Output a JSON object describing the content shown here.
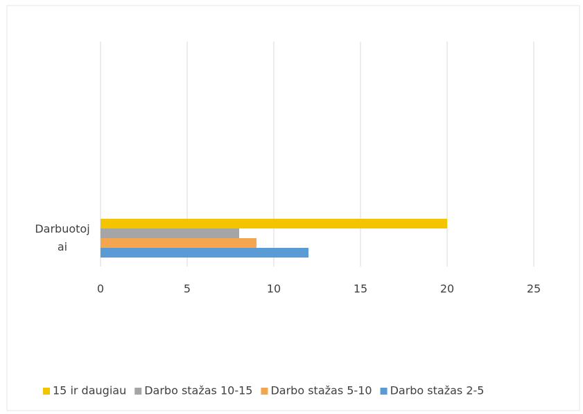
{
  "chart_data": {
    "type": "bar",
    "orientation": "horizontal",
    "categories": [
      "Darbuotojai"
    ],
    "series": [
      {
        "name": "15 ir daugiau",
        "color": "#f2c500",
        "values": [
          20
        ]
      },
      {
        "name": "Darbo stažas 10-15",
        "color": "#a5a5a5",
        "values": [
          8
        ]
      },
      {
        "name": "Darbo stažas 5-10",
        "color": "#f3a54f",
        "values": [
          9
        ]
      },
      {
        "name": "Darbo stažas 2-5",
        "color": "#5b9bd5",
        "values": [
          12
        ]
      }
    ],
    "xlim": [
      0,
      25
    ],
    "xticks": [
      0,
      5,
      10,
      15,
      20,
      25
    ],
    "grid": true,
    "legend": "bottom"
  }
}
